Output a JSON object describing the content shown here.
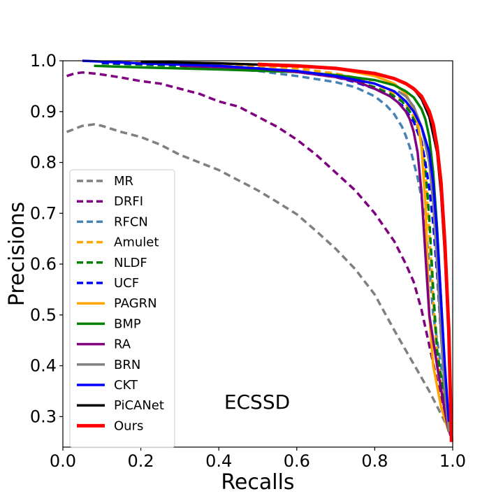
{
  "chart_data": {
    "type": "line",
    "title": "",
    "xlabel": "Recalls",
    "ylabel": "Precisions",
    "xlim": [
      0.0,
      1.0
    ],
    "ylim": [
      0.24,
      1.0
    ],
    "xticks": [
      "0.0",
      "0.2",
      "0.4",
      "0.6",
      "0.8",
      "1.0"
    ],
    "yticks": [
      "0.3",
      "0.4",
      "0.5",
      "0.6",
      "0.7",
      "0.8",
      "0.9",
      "1.0"
    ],
    "grid": false,
    "legend_position": "lower-left",
    "annotation": "ECSSD",
    "series": [
      {
        "name": "MR",
        "color": "#808080",
        "style": "dashed",
        "x": [
          0.01,
          0.05,
          0.08,
          0.1,
          0.15,
          0.2,
          0.25,
          0.3,
          0.35,
          0.4,
          0.45,
          0.5,
          0.55,
          0.6,
          0.65,
          0.7,
          0.75,
          0.8,
          0.85,
          0.88,
          0.91,
          0.94,
          0.96,
          0.98,
          0.995
        ],
        "y": [
          0.86,
          0.872,
          0.875,
          0.872,
          0.86,
          0.85,
          0.835,
          0.815,
          0.8,
          0.785,
          0.765,
          0.745,
          0.722,
          0.698,
          0.665,
          0.63,
          0.59,
          0.54,
          0.47,
          0.43,
          0.39,
          0.35,
          0.32,
          0.29,
          0.27
        ]
      },
      {
        "name": "DRFI",
        "color": "#800080",
        "style": "dashed",
        "x": [
          0.01,
          0.03,
          0.05,
          0.08,
          0.1,
          0.15,
          0.2,
          0.25,
          0.3,
          0.35,
          0.4,
          0.45,
          0.5,
          0.55,
          0.6,
          0.65,
          0.7,
          0.75,
          0.8,
          0.85,
          0.88,
          0.9,
          0.92,
          0.94,
          0.96,
          0.98,
          0.995
        ],
        "y": [
          0.97,
          0.975,
          0.977,
          0.975,
          0.973,
          0.967,
          0.96,
          0.955,
          0.945,
          0.935,
          0.92,
          0.91,
          0.89,
          0.87,
          0.845,
          0.815,
          0.78,
          0.745,
          0.7,
          0.645,
          0.6,
          0.565,
          0.51,
          0.44,
          0.37,
          0.31,
          0.26
        ]
      },
      {
        "name": "RFCN",
        "color": "#4682B4",
        "style": "dashed",
        "x": [
          0.1,
          0.3,
          0.5,
          0.6,
          0.7,
          0.75,
          0.8,
          0.83,
          0.85,
          0.87,
          0.88,
          0.89,
          0.9,
          0.91,
          0.92,
          0.93,
          0.94,
          0.95,
          0.97,
          0.99
        ],
        "y": [
          0.995,
          0.99,
          0.98,
          0.97,
          0.958,
          0.948,
          0.93,
          0.912,
          0.895,
          0.87,
          0.852,
          0.83,
          0.8,
          0.77,
          0.73,
          0.68,
          0.6,
          0.5,
          0.4,
          0.28
        ]
      },
      {
        "name": "Amulet",
        "color": "#FFA500",
        "style": "dashed",
        "x": [
          0.1,
          0.3,
          0.5,
          0.6,
          0.7,
          0.75,
          0.8,
          0.84,
          0.86,
          0.88,
          0.9,
          0.91,
          0.92,
          0.93,
          0.94,
          0.95,
          0.96,
          0.98,
          0.995
        ],
        "y": [
          0.998,
          0.995,
          0.99,
          0.985,
          0.975,
          0.967,
          0.955,
          0.94,
          0.93,
          0.915,
          0.89,
          0.87,
          0.84,
          0.78,
          0.66,
          0.53,
          0.42,
          0.32,
          0.27
        ]
      },
      {
        "name": "NLDF",
        "color": "#008000",
        "style": "dashed",
        "x": [
          0.1,
          0.3,
          0.5,
          0.6,
          0.7,
          0.75,
          0.8,
          0.84,
          0.87,
          0.89,
          0.91,
          0.92,
          0.93,
          0.94,
          0.95,
          0.96,
          0.98,
          0.995
        ],
        "y": [
          0.995,
          0.99,
          0.985,
          0.978,
          0.968,
          0.96,
          0.948,
          0.935,
          0.92,
          0.9,
          0.87,
          0.84,
          0.79,
          0.69,
          0.55,
          0.43,
          0.33,
          0.27
        ]
      },
      {
        "name": "UCF",
        "color": "#0000FF",
        "style": "dashed",
        "x": [
          0.1,
          0.3,
          0.5,
          0.6,
          0.7,
          0.75,
          0.8,
          0.84,
          0.87,
          0.9,
          0.92,
          0.93,
          0.94,
          0.95,
          0.96,
          0.97,
          0.98,
          0.99
        ],
        "y": [
          0.996,
          0.992,
          0.985,
          0.978,
          0.968,
          0.958,
          0.945,
          0.93,
          0.912,
          0.88,
          0.84,
          0.8,
          0.75,
          0.68,
          0.58,
          0.46,
          0.36,
          0.28
        ]
      },
      {
        "name": "PAGRN",
        "color": "#FFA500",
        "style": "solid",
        "x": [
          0.2,
          0.4,
          0.6,
          0.7,
          0.8,
          0.85,
          0.88,
          0.9,
          0.91,
          0.92,
          0.93,
          0.935,
          0.94,
          0.95,
          0.97,
          0.99
        ],
        "y": [
          0.998,
          0.995,
          0.99,
          0.985,
          0.97,
          0.955,
          0.935,
          0.905,
          0.88,
          0.83,
          0.72,
          0.61,
          0.5,
          0.4,
          0.32,
          0.27
        ]
      },
      {
        "name": "BMP",
        "color": "#008000",
        "style": "solid",
        "x": [
          0.08,
          0.2,
          0.4,
          0.6,
          0.7,
          0.8,
          0.85,
          0.88,
          0.9,
          0.92,
          0.93,
          0.94,
          0.95,
          0.96,
          0.97,
          0.98,
          0.99
        ],
        "y": [
          0.99,
          0.987,
          0.983,
          0.978,
          0.972,
          0.962,
          0.952,
          0.94,
          0.928,
          0.905,
          0.885,
          0.85,
          0.78,
          0.67,
          0.53,
          0.39,
          0.28
        ]
      },
      {
        "name": "RA",
        "color": "#800080",
        "style": "solid",
        "x": [
          0.3,
          0.5,
          0.6,
          0.7,
          0.75,
          0.8,
          0.84,
          0.86,
          0.88,
          0.89,
          0.9,
          0.91,
          0.92,
          0.93,
          0.94,
          0.96,
          0.98,
          0.99
        ],
        "y": [
          0.99,
          0.985,
          0.978,
          0.968,
          0.96,
          0.945,
          0.93,
          0.918,
          0.9,
          0.885,
          0.86,
          0.82,
          0.74,
          0.62,
          0.5,
          0.4,
          0.31,
          0.27
        ]
      },
      {
        "name": "BRN",
        "color": "#808080",
        "style": "solid",
        "x": [
          0.86,
          0.88,
          0.9,
          0.92,
          0.94,
          0.95,
          0.96,
          0.97,
          0.98,
          0.99
        ],
        "y": [
          0.94,
          0.93,
          0.91,
          0.87,
          0.8,
          0.72,
          0.6,
          0.46,
          0.35,
          0.27
        ]
      },
      {
        "name": "CKT",
        "color": "#0000FF",
        "style": "solid",
        "x": [
          0.05,
          0.2,
          0.4,
          0.6,
          0.7,
          0.8,
          0.85,
          0.88,
          0.9,
          0.92,
          0.94,
          0.95,
          0.96,
          0.97,
          0.98,
          0.99
        ],
        "y": [
          1.0,
          0.995,
          0.99,
          0.98,
          0.97,
          0.955,
          0.94,
          0.92,
          0.9,
          0.87,
          0.82,
          0.76,
          0.66,
          0.53,
          0.4,
          0.29
        ]
      },
      {
        "name": "PiCANet",
        "color": "#000000",
        "style": "solid",
        "x": [
          0.2,
          0.4,
          0.6,
          0.7,
          0.8,
          0.85,
          0.88,
          0.9,
          0.92,
          0.94,
          0.96,
          0.97,
          0.98,
          0.99,
          0.995
        ],
        "y": [
          0.998,
          0.995,
          0.99,
          0.985,
          0.975,
          0.965,
          0.955,
          0.945,
          0.925,
          0.89,
          0.82,
          0.74,
          0.62,
          0.46,
          0.3
        ]
      },
      {
        "name": "Ours",
        "color": "#FF0000",
        "style": "solid",
        "x": [
          0.5,
          0.6,
          0.7,
          0.8,
          0.85,
          0.88,
          0.9,
          0.92,
          0.94,
          0.95,
          0.96,
          0.97,
          0.98,
          0.99,
          0.997
        ],
        "y": [
          0.993,
          0.99,
          0.985,
          0.975,
          0.965,
          0.955,
          0.945,
          0.93,
          0.9,
          0.875,
          0.83,
          0.76,
          0.64,
          0.47,
          0.25
        ]
      }
    ]
  }
}
